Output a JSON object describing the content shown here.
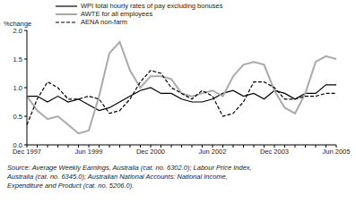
{
  "chart_data": {
    "type": "line",
    "y_label": "%change",
    "categories": [
      "Dec 1997",
      null,
      null,
      null,
      null,
      null,
      "Jun 1999",
      null,
      null,
      null,
      null,
      null,
      "Dec 2000",
      null,
      null,
      null,
      null,
      null,
      "Jun 2002",
      null,
      null,
      null,
      null,
      null,
      "Dec 2003",
      null,
      null,
      null,
      null,
      null,
      "Jun 2005"
    ],
    "series": [
      {
        "name": "WPI total hourly rates of pay excluding bonuses",
        "color": "#000000",
        "line_style": "solid",
        "values": [
          0.85,
          0.85,
          0.75,
          0.85,
          0.75,
          0.8,
          0.7,
          0.6,
          0.65,
          0.75,
          0.85,
          0.95,
          1.0,
          0.9,
          0.9,
          0.8,
          0.75,
          0.75,
          0.8,
          0.9,
          0.95,
          0.85,
          0.9,
          0.8,
          0.95,
          0.9,
          0.8,
          0.9,
          0.9,
          1.05,
          1.05
        ]
      },
      {
        "name": "AWTE for all employees",
        "color": "#aaaaaa",
        "line_style": "solid",
        "values": [
          0.85,
          0.6,
          0.45,
          0.5,
          0.35,
          0.2,
          0.25,
          0.85,
          1.6,
          1.8,
          1.3,
          1.0,
          1.2,
          1.2,
          1.15,
          0.9,
          0.85,
          0.9,
          0.95,
          0.85,
          1.2,
          1.4,
          1.45,
          1.4,
          0.95,
          0.65,
          0.55,
          0.9,
          1.45,
          1.55,
          1.5
        ]
      },
      {
        "name": "AENA non-farm",
        "color": "#000000",
        "line_style": "dashed",
        "values": [
          0.35,
          0.8,
          1.1,
          1.0,
          0.8,
          0.8,
          0.85,
          0.8,
          0.55,
          0.6,
          0.8,
          1.1,
          1.3,
          1.25,
          1.0,
          0.9,
          0.8,
          0.95,
          0.85,
          0.5,
          0.55,
          0.75,
          1.1,
          1.1,
          1.0,
          0.8,
          0.8,
          0.85,
          0.85,
          0.9,
          0.9
        ]
      }
    ],
    "ylim": [
      0,
      2
    ],
    "yticks": [
      {
        "value": 0,
        "label": "0.0"
      },
      {
        "value": 0.5,
        "label": "0.5"
      },
      {
        "value": 1,
        "label": "1.0"
      },
      {
        "value": 1.5,
        "label": "1.5"
      },
      {
        "value": 2,
        "label": "2.0"
      }
    ],
    "grid": false,
    "legend": "top-left",
    "source": [
      "Source: Average Weekly Earnings, Australia (cat. no. 6302.0); Labour Price Index,",
      "Australia (cat. no. 6345.0); Australian National Accounts: National Income,",
      "Expenditure and Product (cat. no. 5206.0)."
    ]
  }
}
